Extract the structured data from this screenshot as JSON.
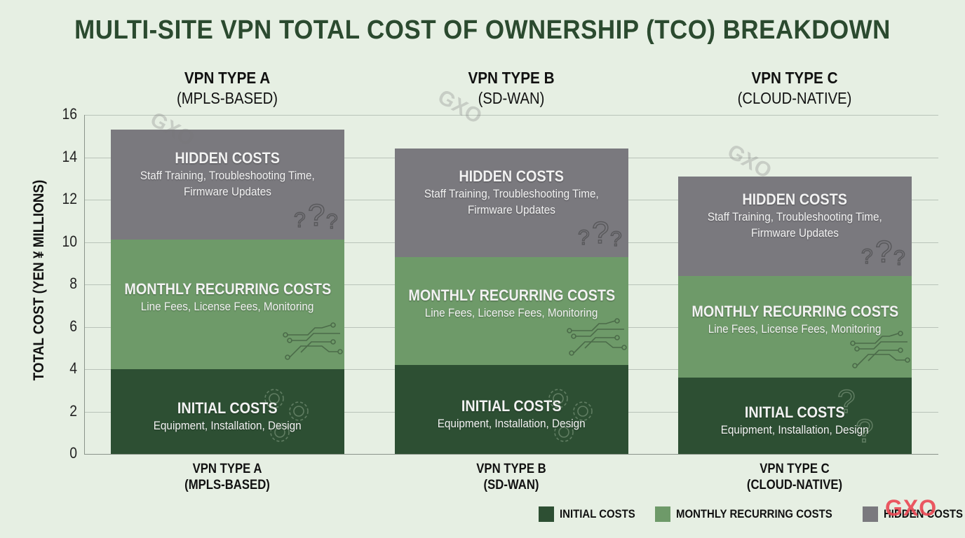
{
  "title": "MULTI-SITE VPN TOTAL COST OF OWNERSHIP (TCO) BREAKDOWN",
  "columns": [
    {
      "name": "VPN TYPE A",
      "subtitle": "(MPLS-BASED)"
    },
    {
      "name": "VPN TYPE B",
      "subtitle": "(SD-WAN)"
    },
    {
      "name": "VPN TYPE C",
      "subtitle": "(CLOUD-NATIVE)"
    }
  ],
  "segment_text": {
    "hidden": {
      "title": "HIDDEN COSTS",
      "line1": "Staff Training, Troubleshooting Time,",
      "line2": "Firmware Updates",
      "icon": "question-marks-icon"
    },
    "monthly": {
      "title": "MONTHLY RECURRING COSTS",
      "line1": "Line Fees, License Fees, Monitoring",
      "icon": "circuit-icon"
    },
    "initial": {
      "title": "INITIAL COSTS",
      "line1": "Equipment, Installation, Design",
      "icon": "gears-icon"
    }
  },
  "legend": [
    {
      "label": "INITIAL COSTS",
      "color": "#2d4f33"
    },
    {
      "label": "MONTHLY RECURRING COSTS",
      "color": "#6e9a69"
    },
    {
      "label": "HIDDEN COSTS",
      "color": "#7a797e"
    }
  ],
  "watermark": "GXO",
  "colors": {
    "background": "#e6efe3",
    "title": "#2b4a2f",
    "initial": "#2d4f33",
    "monthly": "#6e9a69",
    "hidden": "#7a797e",
    "watermark_red": "#ea4652"
  },
  "chart_data": {
    "type": "bar",
    "stacked": true,
    "title": "MULTI-SITE VPN TOTAL COST OF OWNERSHIP (TCO) BREAKDOWN",
    "xlabel": "",
    "ylabel": "TOTAL COST (YEN ¥ MILLIONS)",
    "ylim": [
      0,
      16
    ],
    "yticks": [
      0,
      2,
      4,
      6,
      8,
      10,
      12,
      14,
      16
    ],
    "grid": true,
    "legend_position": "bottom-right",
    "categories": [
      "VPN TYPE A (MPLS-BASED)",
      "VPN TYPE B (SD-WAN)",
      "VPN TYPE C (CLOUD-NATIVE)"
    ],
    "series": [
      {
        "name": "INITIAL COSTS",
        "values": [
          4.0,
          4.2,
          3.6
        ]
      },
      {
        "name": "MONTHLY RECURRING COSTS",
        "values": [
          6.1,
          5.1,
          4.8
        ]
      },
      {
        "name": "HIDDEN COSTS",
        "values": [
          5.2,
          5.1,
          4.7
        ]
      }
    ],
    "totals": [
      15.3,
      14.4,
      13.1
    ]
  }
}
